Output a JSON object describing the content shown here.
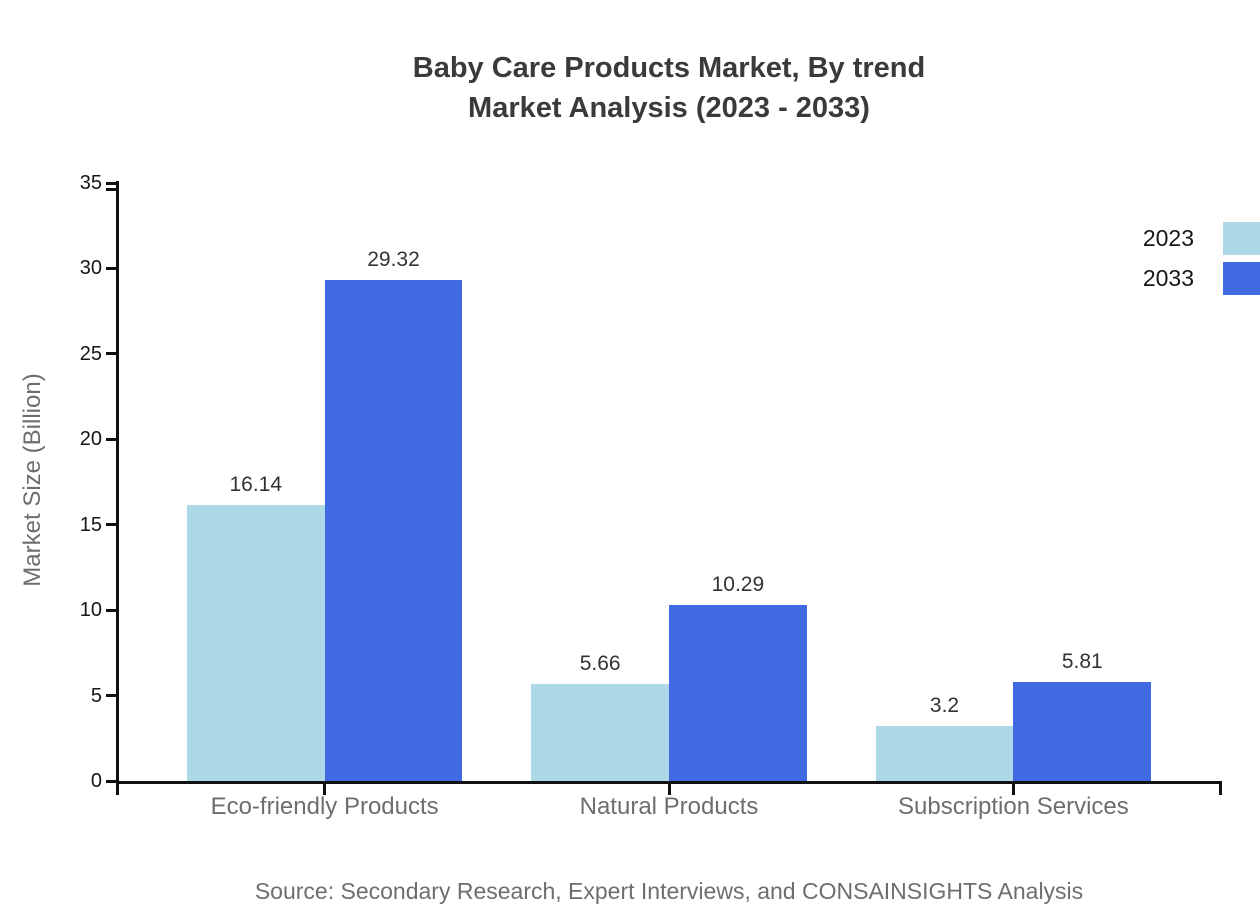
{
  "title": {
    "line1": "Baby Care Products Market, By trend",
    "line2": "Market Analysis (2023 - 2033)"
  },
  "legend": {
    "position": "top-right",
    "items": [
      {
        "label": "2023",
        "color": "#ADD8E6"
      },
      {
        "label": "2033",
        "color": "#4169E1"
      }
    ]
  },
  "source": "Source: Secondary Research, Expert Interviews, and CONSAINSIGHTS Analysis",
  "chart_data": {
    "type": "bar",
    "title": "Baby Care Products Market, By trend Market Analysis (2023 - 2033)",
    "categories": [
      "Eco-friendly Products",
      "Natural Products",
      "Subscription Services"
    ],
    "series": [
      {
        "name": "2023",
        "color": "#ADD8E6",
        "values": [
          16.14,
          5.66,
          3.2
        ]
      },
      {
        "name": "2033",
        "color": "#4169E1",
        "values": [
          29.32,
          10.29,
          5.81
        ]
      }
    ],
    "xlabel": "",
    "ylabel": "Market Size (Billion)",
    "ylim": [
      0,
      35
    ],
    "yticks": [
      0,
      5,
      10,
      15,
      20,
      25,
      30,
      35
    ],
    "grid": false,
    "legend_position": "top-right",
    "axis_color": "#111111"
  }
}
